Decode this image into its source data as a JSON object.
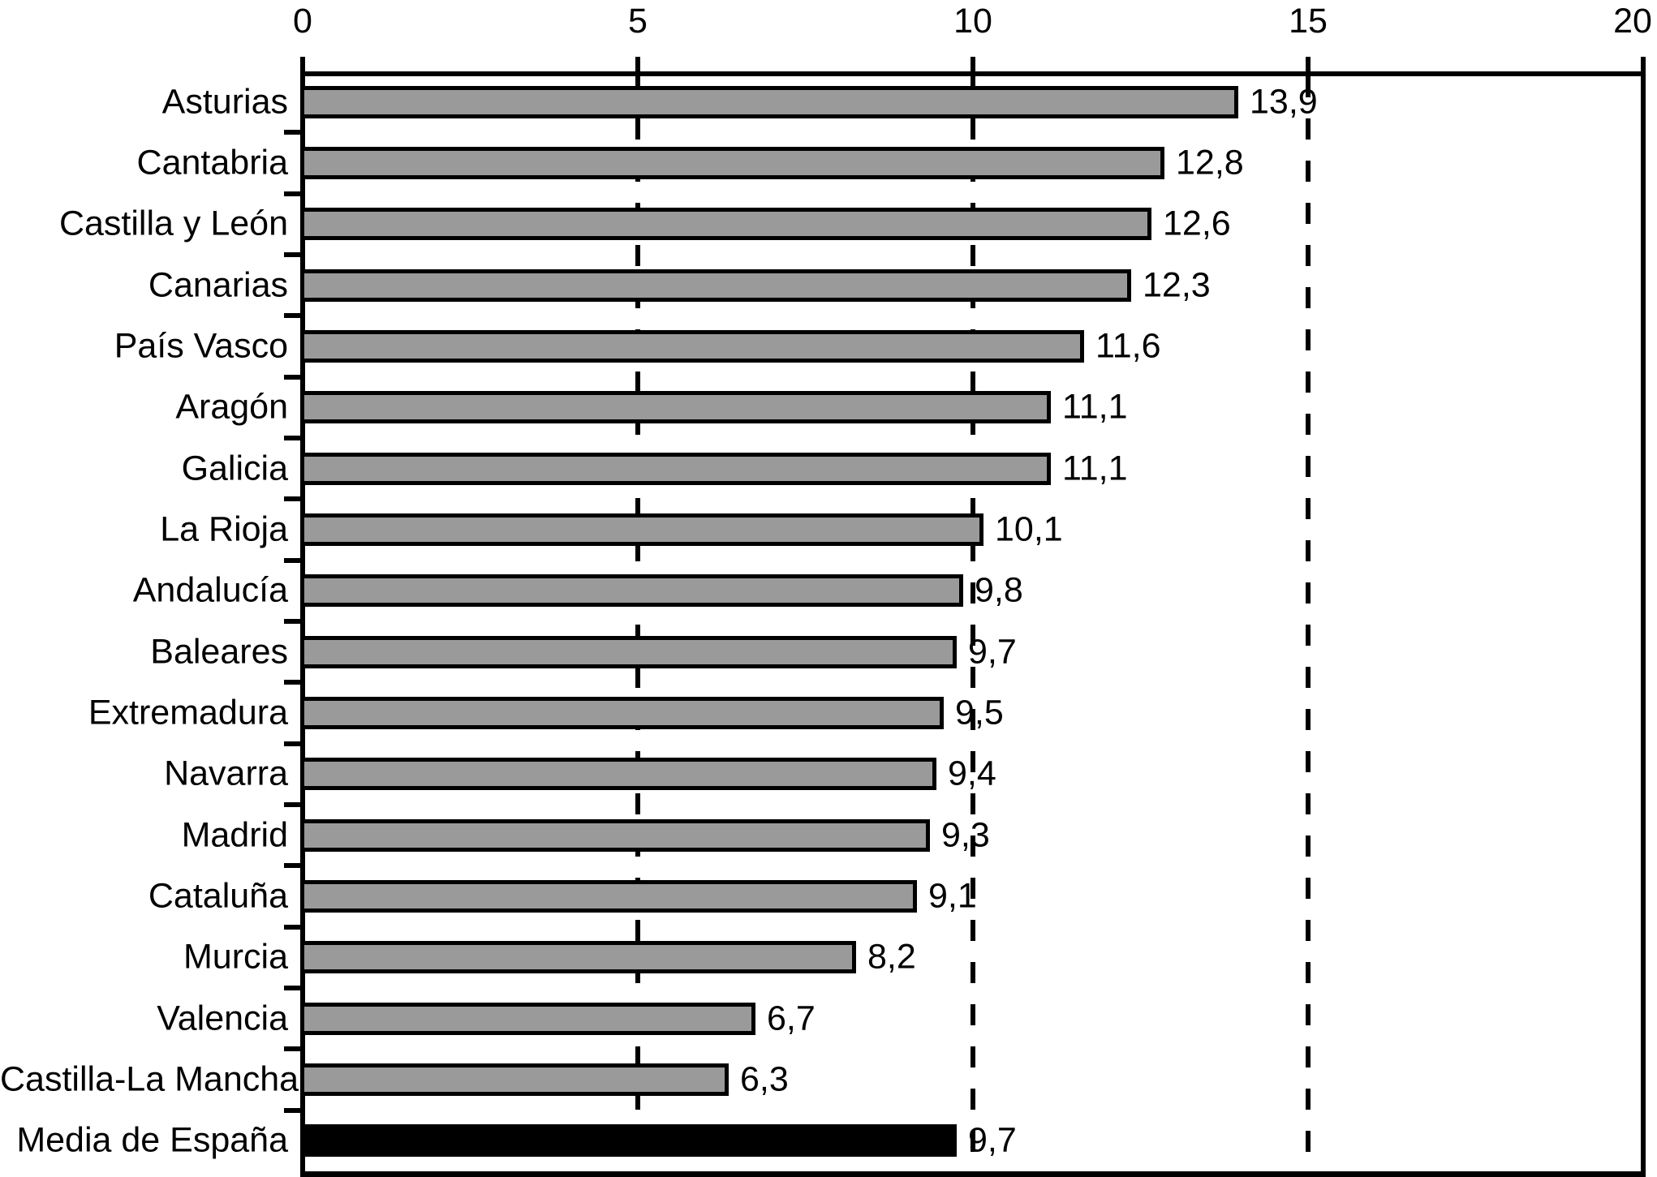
{
  "chart_data": {
    "type": "bar",
    "orientation": "horizontal",
    "title": "",
    "categories": [
      "Asturias",
      "Cantabria",
      "Castilla y León",
      "Canarias",
      "País Vasco",
      "Aragón",
      "Galicia",
      "La Rioja",
      "Andalucía",
      "Baleares",
      "Extremadura",
      "Navarra",
      "Madrid",
      "Cataluña",
      "Murcia",
      "Valencia",
      "Castilla-La Mancha",
      "Media de España"
    ],
    "values": [
      13.9,
      12.8,
      12.6,
      12.3,
      11.6,
      11.1,
      11.1,
      10.1,
      9.8,
      9.7,
      9.5,
      9.4,
      9.3,
      9.1,
      8.2,
      6.7,
      6.3,
      9.7
    ],
    "value_labels": [
      "13,9",
      "12,8",
      "12,6",
      "12,3",
      "11,6",
      "11,1",
      "11,1",
      "10,1",
      "9,8",
      "9,7",
      "9,5",
      "9,4",
      "9,3",
      "9,1",
      "8,2",
      "6,7",
      "6,3",
      "9,7"
    ],
    "highlight_category": "Media de España",
    "highlight_index": 17,
    "xlim": [
      0,
      20
    ],
    "x_tick_values": [
      0,
      5,
      10,
      15,
      20
    ],
    "x_tick_labels": [
      "0",
      "5",
      "10",
      "15",
      "20"
    ],
    "gridline_values": [
      5,
      10,
      15
    ],
    "grid_style": "dashed",
    "axis_position": "top",
    "legend": "none",
    "colors": {
      "bar": "#9A9A9A",
      "highlight": "#000000",
      "border": "#000000",
      "background": "#FFFFFF",
      "text": "#000000"
    }
  }
}
